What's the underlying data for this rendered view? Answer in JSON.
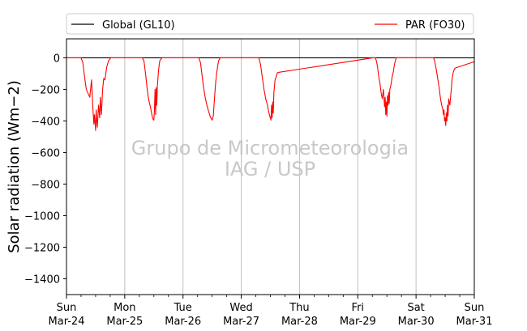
{
  "chart_data": {
    "type": "line",
    "ylabel": "Solar radiation (Wm−2)",
    "ylim": [
      -1500,
      120
    ],
    "yticks": [
      0,
      -200,
      -400,
      -600,
      -800,
      -1000,
      -1200,
      -1400
    ],
    "ytick_labels": [
      "0",
      "−200",
      "−400",
      "−600",
      "−800",
      "−1000",
      "−1200",
      "−1400"
    ],
    "xlim_days": [
      0,
      7
    ],
    "xticks": [
      {
        "day": 0,
        "weekday": "Sun",
        "date": "Mar-24"
      },
      {
        "day": 1,
        "weekday": "Mon",
        "date": "Mar-25"
      },
      {
        "day": 2,
        "weekday": "Tue",
        "date": "Mar-26"
      },
      {
        "day": 3,
        "weekday": "Wed",
        "date": "Mar-27"
      },
      {
        "day": 4,
        "weekday": "Thu",
        "date": "Mar-28"
      },
      {
        "day": 5,
        "weekday": "Fri",
        "date": "Mar-29"
      },
      {
        "day": 6,
        "weekday": "Sat",
        "date": "Mar-30"
      },
      {
        "day": 7,
        "weekday": "Sun",
        "date": "Mar-31"
      }
    ],
    "grid": "vertical",
    "legend_position": "top",
    "watermark": [
      "Grupo de Micrometeorologia",
      "IAG / USP"
    ],
    "series": [
      {
        "name": "Global (GL10)",
        "color": "#000000",
        "points": [
          [
            0,
            0
          ],
          [
            7,
            0
          ]
        ]
      },
      {
        "name": "PAR (FO30)",
        "color": "#ff0000",
        "points": [
          [
            0.0,
            0
          ],
          [
            0.25,
            0
          ],
          [
            0.28,
            -30
          ],
          [
            0.31,
            -120
          ],
          [
            0.34,
            -200
          ],
          [
            0.4,
            -250
          ],
          [
            0.43,
            -140
          ],
          [
            0.45,
            -300
          ],
          [
            0.47,
            -420
          ],
          [
            0.48,
            -360
          ],
          [
            0.5,
            -460
          ],
          [
            0.51,
            -330
          ],
          [
            0.52,
            -400
          ],
          [
            0.53,
            -440
          ],
          [
            0.55,
            -300
          ],
          [
            0.57,
            -380
          ],
          [
            0.58,
            -250
          ],
          [
            0.6,
            -360
          ],
          [
            0.62,
            -200
          ],
          [
            0.64,
            -130
          ],
          [
            0.66,
            -140
          ],
          [
            0.69,
            -60
          ],
          [
            0.72,
            -20
          ],
          [
            0.76,
            0
          ],
          [
            1.3,
            0
          ],
          [
            1.33,
            -20
          ],
          [
            1.36,
            -110
          ],
          [
            1.38,
            -180
          ],
          [
            1.4,
            -240
          ],
          [
            1.42,
            -280
          ],
          [
            1.44,
            -310
          ],
          [
            1.46,
            -350
          ],
          [
            1.48,
            -385
          ],
          [
            1.5,
            -395
          ],
          [
            1.51,
            -330
          ],
          [
            1.52,
            -200
          ],
          [
            1.53,
            -360
          ],
          [
            1.54,
            -190
          ],
          [
            1.55,
            -300
          ],
          [
            1.56,
            -180
          ],
          [
            1.58,
            -80
          ],
          [
            1.6,
            -20
          ],
          [
            1.64,
            0
          ],
          [
            2.15,
            0
          ],
          [
            2.27,
            0
          ],
          [
            2.3,
            -30
          ],
          [
            2.33,
            -120
          ],
          [
            2.35,
            -180
          ],
          [
            2.38,
            -250
          ],
          [
            2.41,
            -300
          ],
          [
            2.44,
            -340
          ],
          [
            2.47,
            -375
          ],
          [
            2.5,
            -395
          ],
          [
            2.52,
            -370
          ],
          [
            2.54,
            -260
          ],
          [
            2.56,
            -160
          ],
          [
            2.58,
            -90
          ],
          [
            2.61,
            -20
          ],
          [
            2.64,
            0
          ],
          [
            3.0,
            0
          ],
          [
            3.3,
            0
          ],
          [
            3.33,
            -40
          ],
          [
            3.36,
            -120
          ],
          [
            3.39,
            -200
          ],
          [
            3.42,
            -260
          ],
          [
            3.45,
            -300
          ],
          [
            3.47,
            -340
          ],
          [
            3.49,
            -370
          ],
          [
            3.51,
            -395
          ],
          [
            3.52,
            -300
          ],
          [
            3.53,
            -380
          ],
          [
            3.54,
            -280
          ],
          [
            3.55,
            -350
          ],
          [
            3.56,
            -220
          ],
          [
            3.58,
            -140
          ],
          [
            3.6,
            -120
          ],
          [
            3.62,
            -95
          ],
          [
            3.65,
            -92
          ],
          [
            5.26,
            0
          ],
          [
            5.3,
            0
          ],
          [
            5.32,
            -20
          ],
          [
            5.34,
            -60
          ],
          [
            5.36,
            -120
          ],
          [
            5.38,
            -160
          ],
          [
            5.4,
            -220
          ],
          [
            5.42,
            -260
          ],
          [
            5.44,
            -200
          ],
          [
            5.46,
            -310
          ],
          [
            5.47,
            -250
          ],
          [
            5.48,
            -360
          ],
          [
            5.49,
            -280
          ],
          [
            5.5,
            -370
          ],
          [
            5.51,
            -240
          ],
          [
            5.52,
            -300
          ],
          [
            5.53,
            -220
          ],
          [
            5.54,
            -290
          ],
          [
            5.55,
            -200
          ],
          [
            5.57,
            -170
          ],
          [
            5.59,
            -120
          ],
          [
            5.61,
            -90
          ],
          [
            5.63,
            -40
          ],
          [
            5.66,
            0
          ],
          [
            6.2,
            0
          ],
          [
            6.3,
            0
          ],
          [
            6.32,
            -20
          ],
          [
            6.35,
            -80
          ],
          [
            6.38,
            -150
          ],
          [
            6.4,
            -200
          ],
          [
            6.42,
            -260
          ],
          [
            6.44,
            -300
          ],
          [
            6.46,
            -330
          ],
          [
            6.47,
            -360
          ],
          [
            6.48,
            -330
          ],
          [
            6.49,
            -400
          ],
          [
            6.5,
            -380
          ],
          [
            6.51,
            -430
          ],
          [
            6.52,
            -350
          ],
          [
            6.53,
            -400
          ],
          [
            6.54,
            -300
          ],
          [
            6.55,
            -370
          ],
          [
            6.56,
            -260
          ],
          [
            6.58,
            -300
          ],
          [
            6.6,
            -220
          ],
          [
            6.62,
            -130
          ],
          [
            6.64,
            -90
          ],
          [
            6.66,
            -70
          ],
          [
            6.68,
            -64
          ],
          [
            7.0,
            -25
          ]
        ]
      }
    ]
  }
}
